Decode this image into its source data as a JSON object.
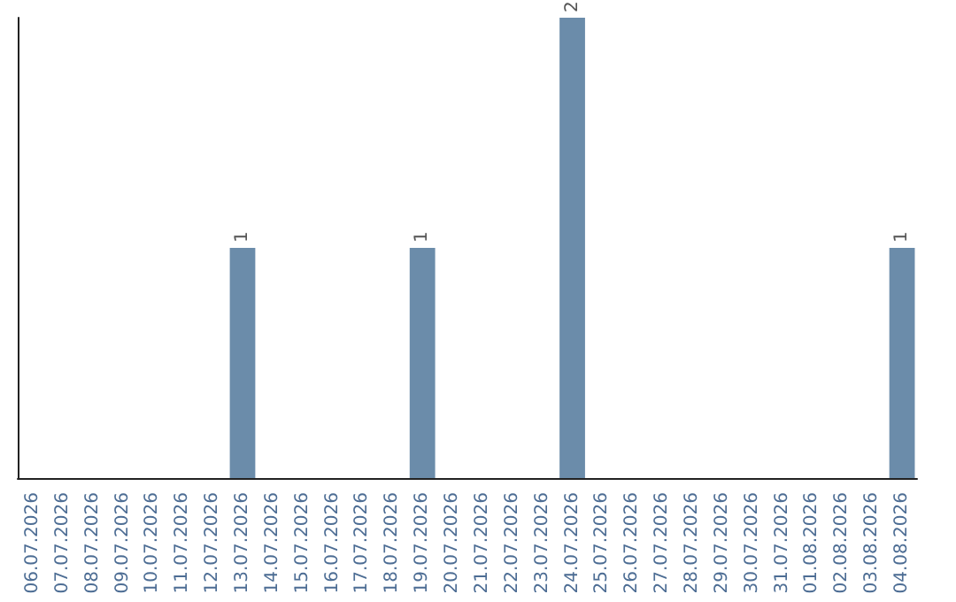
{
  "chart_data": {
    "type": "bar",
    "categories": [
      "06.07.2026",
      "07.07.2026",
      "08.07.2026",
      "09.07.2026",
      "10.07.2026",
      "11.07.2026",
      "12.07.2026",
      "13.07.2026",
      "14.07.2026",
      "15.07.2026",
      "16.07.2026",
      "17.07.2026",
      "18.07.2026",
      "19.07.2026",
      "20.07.2026",
      "21.07.2026",
      "22.07.2026",
      "23.07.2026",
      "24.07.2026",
      "25.07.2026",
      "26.07.2026",
      "27.07.2026",
      "28.07.2026",
      "29.07.2026",
      "30.07.2026",
      "31.07.2026",
      "01.08.2026",
      "02.08.2026",
      "03.08.2026",
      "04.08.2026"
    ],
    "values": [
      0,
      0,
      0,
      0,
      0,
      0,
      0,
      1,
      0,
      0,
      0,
      0,
      0,
      1,
      0,
      0,
      0,
      0,
      2,
      0,
      0,
      0,
      0,
      0,
      0,
      0,
      0,
      0,
      0,
      1
    ],
    "value_labels": [
      null,
      null,
      null,
      null,
      null,
      null,
      null,
      "1",
      null,
      null,
      null,
      null,
      null,
      "1",
      null,
      null,
      null,
      null,
      "2",
      null,
      null,
      null,
      null,
      null,
      null,
      null,
      null,
      null,
      null,
      "1"
    ],
    "color": "#6b8caa",
    "tick_labels": "x",
    "grid": false
  }
}
